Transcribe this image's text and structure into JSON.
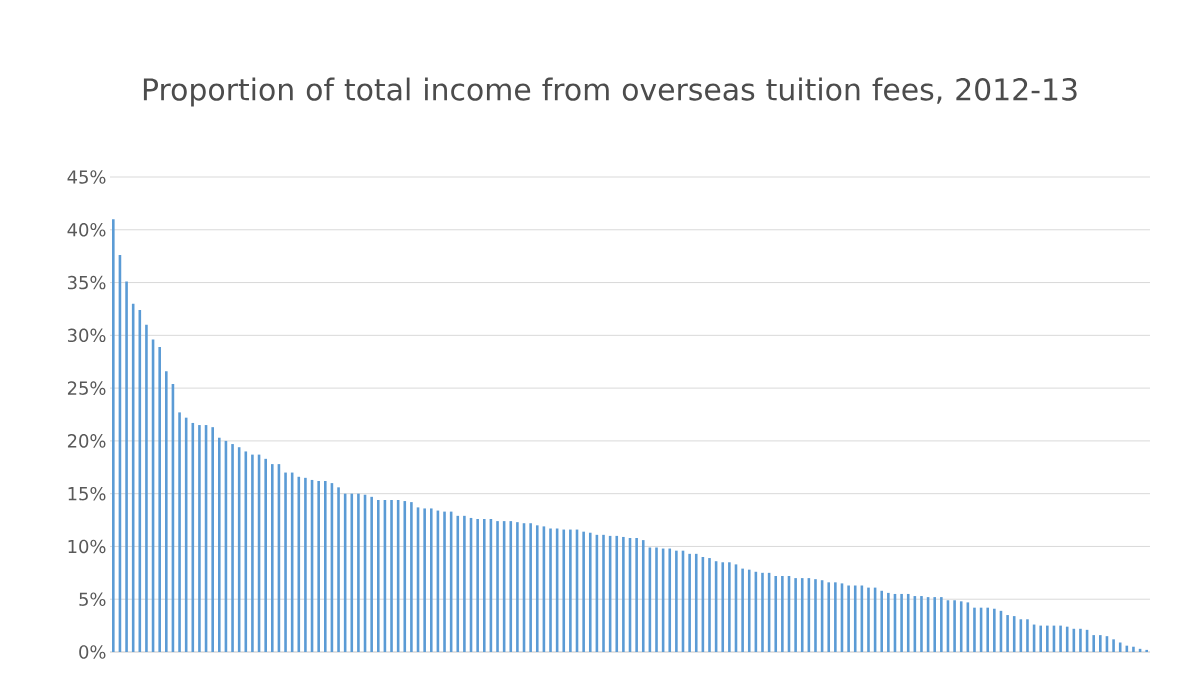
{
  "chart_data": {
    "type": "bar",
    "title": "Proportion of total income from overseas tuition fees, 2012-13",
    "categories": [
      null,
      null,
      null,
      null,
      null,
      null,
      null,
      null,
      null,
      null,
      null,
      null,
      null,
      null,
      null,
      null,
      null,
      null,
      null,
      null,
      null,
      null,
      null,
      null,
      null,
      null,
      null,
      null,
      null,
      null,
      null,
      null,
      null,
      null,
      null,
      null,
      null,
      null,
      null,
      null,
      null,
      null,
      null,
      null,
      null,
      null,
      null,
      null,
      null,
      null,
      null,
      null,
      null,
      null,
      null,
      null,
      null,
      null,
      null,
      null,
      null,
      null,
      null,
      null,
      null,
      null,
      null,
      null,
      null,
      null,
      null,
      null,
      null,
      null,
      null,
      null,
      null,
      null,
      null,
      null,
      null,
      null,
      null,
      null,
      null,
      null,
      null,
      null,
      null,
      null,
      null,
      null,
      null,
      null,
      null,
      null,
      null,
      null,
      null,
      null,
      null,
      null,
      null,
      null,
      null,
      null,
      null,
      null,
      null,
      null,
      null,
      null,
      null,
      null,
      null,
      null,
      null,
      null,
      null,
      null,
      null,
      null,
      null,
      null,
      null,
      null,
      null,
      null,
      null,
      null,
      null,
      null,
      null,
      null,
      null,
      null,
      null,
      null,
      null,
      null,
      null,
      null,
      null,
      null,
      null,
      null,
      null,
      null,
      null,
      null,
      null,
      null,
      null,
      null,
      null,
      null,
      null
    ],
    "values": [
      41.0,
      37.6,
      35.1,
      33.0,
      32.4,
      31.0,
      29.6,
      28.9,
      26.6,
      25.4,
      22.7,
      22.2,
      21.7,
      21.5,
      21.5,
      21.3,
      20.3,
      20.0,
      19.7,
      19.4,
      19.0,
      18.7,
      18.7,
      18.3,
      17.8,
      17.8,
      17.0,
      17.0,
      16.6,
      16.5,
      16.3,
      16.2,
      16.2,
      16.0,
      15.6,
      15.0,
      15.0,
      15.0,
      14.9,
      14.7,
      14.4,
      14.4,
      14.4,
      14.4,
      14.3,
      14.2,
      13.7,
      13.6,
      13.6,
      13.4,
      13.3,
      13.3,
      12.9,
      12.9,
      12.7,
      12.6,
      12.6,
      12.6,
      12.4,
      12.4,
      12.4,
      12.3,
      12.2,
      12.2,
      12.0,
      11.9,
      11.7,
      11.7,
      11.6,
      11.6,
      11.6,
      11.4,
      11.3,
      11.1,
      11.1,
      11.0,
      11.0,
      10.9,
      10.8,
      10.8,
      10.6,
      9.9,
      9.9,
      9.8,
      9.8,
      9.6,
      9.6,
      9.3,
      9.3,
      9.0,
      8.9,
      8.6,
      8.5,
      8.5,
      8.3,
      7.9,
      7.8,
      7.6,
      7.5,
      7.5,
      7.2,
      7.2,
      7.2,
      7.0,
      7.0,
      7.0,
      6.9,
      6.8,
      6.6,
      6.6,
      6.5,
      6.3,
      6.3,
      6.3,
      6.1,
      6.1,
      5.8,
      5.6,
      5.5,
      5.5,
      5.5,
      5.3,
      5.3,
      5.2,
      5.2,
      5.2,
      4.9,
      4.9,
      4.8,
      4.7,
      4.2,
      4.2,
      4.2,
      4.1,
      3.9,
      3.5,
      3.4,
      3.1,
      3.1,
      2.6,
      2.5,
      2.5,
      2.5,
      2.5,
      2.4,
      2.2,
      2.2,
      2.1,
      1.6,
      1.6,
      1.5,
      1.2,
      0.9,
      0.6,
      0.5,
      0.3,
      0.2
    ],
    "color": "#5b9bd5",
    "ylim": [
      0,
      45
    ],
    "yticks": [
      {
        "value": 0,
        "label": "0%"
      },
      {
        "value": 5,
        "label": "5%"
      },
      {
        "value": 10,
        "label": "10%"
      },
      {
        "value": 15,
        "label": "15%"
      },
      {
        "value": 20,
        "label": "20%"
      },
      {
        "value": 25,
        "label": "25%"
      },
      {
        "value": 30,
        "label": "30%"
      },
      {
        "value": 35,
        "label": "35%"
      },
      {
        "value": 40,
        "label": "40%"
      },
      {
        "value": 45,
        "label": "45%"
      }
    ],
    "grid": "y",
    "tick_labels": "y"
  }
}
